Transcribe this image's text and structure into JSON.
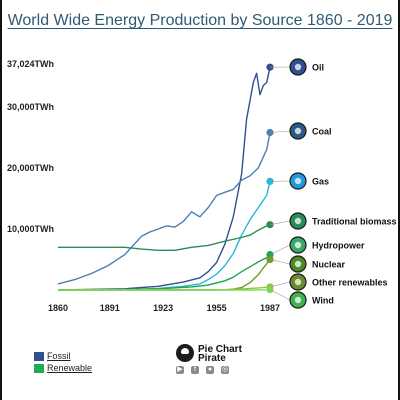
{
  "title": "World Wide Energy Production by Source 1860 - 2019",
  "brand": {
    "line1": "Pie Chart",
    "line2": "Pirate",
    "social_icons": [
      "youtube-icon",
      "facebook-icon",
      "reddit-icon",
      "instagram-icon"
    ]
  },
  "legend": [
    {
      "label": "Fossil",
      "color": "#2f4f8f"
    },
    {
      "label": "Renewable",
      "color": "#1faa55"
    }
  ],
  "chart_data": {
    "type": "line",
    "title": "World Wide Energy Production by Source 1860 - 2019",
    "xlabel": "",
    "ylabel": "",
    "xlim": [
      1860,
      1987
    ],
    "ylim": [
      0,
      37024
    ],
    "x_ticks": [
      1860,
      1891,
      1923,
      1955,
      1987
    ],
    "y_ticks": [
      {
        "value": 10000,
        "label": "10,000TWh"
      },
      {
        "value": 20000,
        "label": "20,000TWh"
      },
      {
        "value": 30000,
        "label": "30,000TWh"
      },
      {
        "value": 37024,
        "label": "37,024TWh"
      }
    ],
    "grid": false,
    "legend_position": "right",
    "series": [
      {
        "name": "Oil",
        "color": "#2f4f8f",
        "icon": "oil-drop-icon",
        "icon_color": "#2f4f8f",
        "x": [
          1860,
          1900,
          1920,
          1935,
          1945,
          1950,
          1955,
          1960,
          1965,
          1970,
          1973,
          1975,
          1977,
          1979,
          1981,
          1983,
          1985,
          1987
        ],
        "y": [
          0,
          200,
          600,
          1300,
          2000,
          3000,
          4500,
          7500,
          12000,
          19000,
          28000,
          31000,
          34000,
          35500,
          32000,
          33500,
          34000,
          36500
        ]
      },
      {
        "name": "Coal",
        "color": "#4a7fb0",
        "icon": "coal-lump-icon",
        "icon_color": "#2b5a86",
        "x": [
          1860,
          1870,
          1880,
          1890,
          1900,
          1910,
          1915,
          1920,
          1925,
          1930,
          1935,
          1940,
          1945,
          1950,
          1955,
          1960,
          1965,
          1970,
          1975,
          1980,
          1985,
          1987
        ],
        "y": [
          1000,
          1700,
          2700,
          4000,
          5800,
          8800,
          9500,
          10000,
          10500,
          10300,
          11200,
          12800,
          12000,
          13500,
          15500,
          16000,
          16500,
          18000,
          18700,
          20000,
          23000,
          25800
        ]
      },
      {
        "name": "Gas",
        "color": "#29b6dd",
        "icon": "gas-flame-icon",
        "icon_color": "#1e9bdc",
        "x": [
          1860,
          1900,
          1920,
          1935,
          1945,
          1950,
          1955,
          1960,
          1965,
          1970,
          1975,
          1980,
          1985,
          1987
        ],
        "y": [
          0,
          60,
          250,
          600,
          1000,
          1700,
          2600,
          4000,
          6000,
          9000,
          11500,
          13500,
          15500,
          17800
        ]
      },
      {
        "name": "Traditional biomass",
        "color": "#2e8b57",
        "icon": "campfire-icon",
        "icon_color": "#2e8b57",
        "x": [
          1860,
          1875,
          1890,
          1900,
          1910,
          1920,
          1930,
          1940,
          1950,
          1960,
          1970,
          1975,
          1980,
          1985,
          1987
        ],
        "y": [
          7000,
          7000,
          7000,
          7000,
          6700,
          6500,
          6500,
          7000,
          7300,
          8000,
          8600,
          9000,
          9800,
          10500,
          10700
        ]
      },
      {
        "name": "Hydropower",
        "color": "#22a34b",
        "icon": "water-drop-icon",
        "icon_color": "#3aa86b",
        "x": [
          1860,
          1900,
          1920,
          1940,
          1950,
          1960,
          1965,
          1970,
          1975,
          1980,
          1985,
          1987
        ],
        "y": [
          0,
          50,
          200,
          500,
          800,
          1500,
          2100,
          3000,
          3800,
          4600,
          5300,
          5800
        ]
      },
      {
        "name": "Nuclear",
        "color": "#6f9a2f",
        "icon": "radiation-icon",
        "icon_color": "#4a8a2a",
        "x": [
          1860,
          1955,
          1960,
          1965,
          1970,
          1975,
          1980,
          1983,
          1985,
          1987
        ],
        "y": [
          0,
          0,
          30,
          150,
          400,
          1200,
          2500,
          3600,
          4300,
          5000
        ]
      },
      {
        "name": "Other renewables",
        "color": "#8dc63f",
        "icon": "crate-icon",
        "icon_color": "#6a8c2b",
        "x": [
          1860,
          1960,
          1970,
          1975,
          1980,
          1985,
          1987
        ],
        "y": [
          0,
          50,
          150,
          250,
          350,
          450,
          500
        ]
      },
      {
        "name": "Wind",
        "color": "#7ed957",
        "icon": "wind-turbine-icon",
        "icon_color": "#3fb34f",
        "x": [
          1860,
          1975,
          1980,
          1985,
          1987
        ],
        "y": [
          0,
          0,
          10,
          40,
          60
        ]
      }
    ]
  }
}
